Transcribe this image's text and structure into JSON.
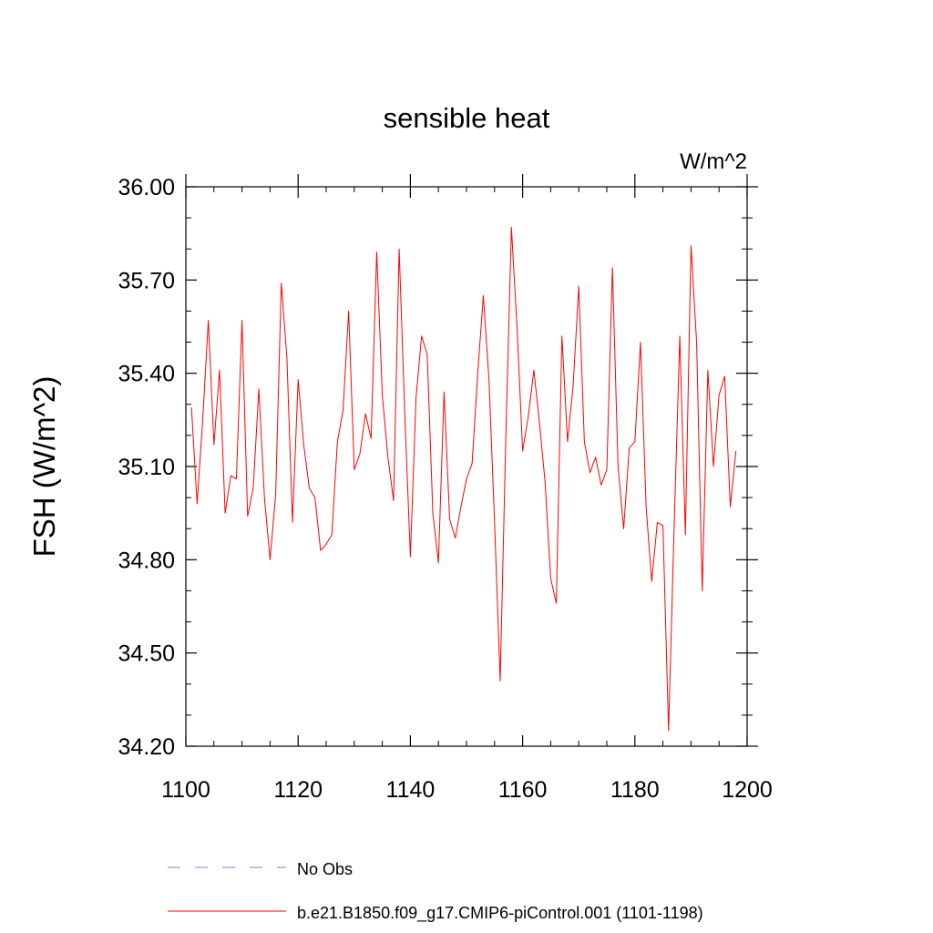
{
  "chart_data": {
    "type": "line",
    "title": "sensible heat",
    "units_label": "W/m^2",
    "ylabel": "FSH  (W/m^2)",
    "xlabel": "",
    "xlim": [
      1100,
      1200
    ],
    "ylim": [
      34.2,
      36.0
    ],
    "x_ticks": [
      1100,
      1120,
      1140,
      1160,
      1180,
      1200
    ],
    "x_tick_labels": [
      "1100",
      "1120",
      "1140",
      "1160",
      "1180",
      "1200"
    ],
    "y_ticks": [
      34.2,
      34.5,
      34.8,
      35.1,
      35.4,
      35.7,
      36.0
    ],
    "y_tick_labels": [
      "34.20",
      "34.50",
      "34.80",
      "35.10",
      "35.40",
      "35.70",
      "36.00"
    ],
    "grid": false,
    "legend_position": "bottom",
    "series": [
      {
        "name": "b.e21.B1850.f09_g17.CMIP6-piControl.001 (1101-1198)",
        "color": "#ff0000",
        "style": "solid",
        "x": [
          1101,
          1102,
          1103,
          1104,
          1105,
          1106,
          1107,
          1108,
          1109,
          1110,
          1111,
          1112,
          1113,
          1114,
          1115,
          1116,
          1117,
          1118,
          1119,
          1120,
          1121,
          1122,
          1123,
          1124,
          1125,
          1126,
          1127,
          1128,
          1129,
          1130,
          1131,
          1132,
          1133,
          1134,
          1135,
          1136,
          1137,
          1138,
          1139,
          1140,
          1141,
          1142,
          1143,
          1144,
          1145,
          1146,
          1147,
          1148,
          1149,
          1150,
          1151,
          1152,
          1153,
          1154,
          1155,
          1156,
          1157,
          1158,
          1159,
          1160,
          1161,
          1162,
          1163,
          1164,
          1165,
          1166,
          1167,
          1168,
          1169,
          1170,
          1171,
          1172,
          1173,
          1174,
          1175,
          1176,
          1177,
          1178,
          1179,
          1180,
          1181,
          1182,
          1183,
          1184,
          1185,
          1186,
          1187,
          1188,
          1189,
          1190,
          1191,
          1192,
          1193,
          1194,
          1195,
          1196,
          1197,
          1198
        ],
        "values": [
          35.29,
          34.98,
          35.25,
          35.57,
          35.17,
          35.41,
          34.95,
          35.07,
          35.06,
          35.57,
          34.94,
          35.03,
          35.35,
          35.0,
          34.8,
          35.01,
          35.69,
          35.45,
          34.92,
          35.38,
          35.17,
          35.03,
          35.0,
          34.83,
          34.85,
          34.88,
          35.18,
          35.28,
          35.6,
          35.09,
          35.14,
          35.27,
          35.19,
          35.79,
          35.33,
          35.13,
          34.99,
          35.8,
          35.27,
          34.81,
          35.32,
          35.52,
          35.46,
          34.95,
          34.79,
          35.34,
          34.93,
          34.87,
          34.97,
          35.06,
          35.11,
          35.4,
          35.65,
          35.38,
          34.92,
          34.41,
          35.19,
          35.87,
          35.55,
          35.15,
          35.26,
          35.41,
          35.24,
          35.05,
          34.74,
          34.66,
          35.52,
          35.18,
          35.36,
          35.68,
          35.18,
          35.08,
          35.13,
          35.04,
          35.09,
          35.74,
          35.1,
          34.9,
          35.16,
          35.18,
          35.5,
          34.97,
          34.73,
          34.92,
          34.91,
          34.25,
          34.91,
          35.52,
          34.88,
          35.81,
          35.5,
          34.7,
          35.41,
          35.1,
          35.33,
          35.39,
          34.97,
          35.15
        ]
      },
      {
        "name": "No Obs",
        "color": "#7f7fdf",
        "style": "dashed",
        "x": [],
        "values": []
      }
    ]
  }
}
